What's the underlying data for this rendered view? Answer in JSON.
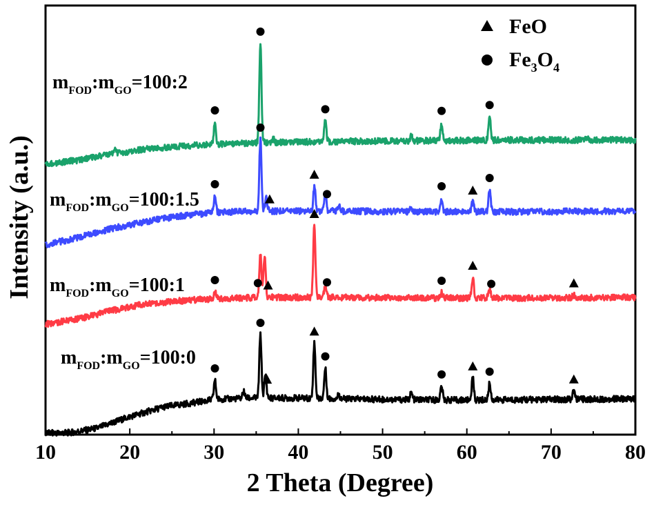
{
  "chart_data": {
    "type": "line",
    "xlabel": "2 Theta (Degree)",
    "ylabel": "Intensity (a.u.)",
    "xlim": [
      10,
      80
    ],
    "xticks": [
      "10",
      "20",
      "30",
      "40",
      "50",
      "60",
      "70",
      "80"
    ],
    "yticks": [],
    "grid": false,
    "legend_position": "top-right",
    "legend": [
      {
        "marker": "triangle",
        "label_main": "FeO",
        "label_sub1": "",
        "label_mid": "",
        "label_sub2": ""
      },
      {
        "marker": "circle",
        "label_main": "Fe",
        "label_sub1": "3",
        "label_mid": "O",
        "label_sub2": "4"
      }
    ],
    "series": [
      {
        "label_m1": "m",
        "label_s1": "FOD",
        "label_m2": ":m",
        "label_s2": "GO",
        "label_ratio": "=100:0",
        "color": "#000000",
        "baseline": [
          [
            10,
            0.0
          ],
          [
            13,
            0.05
          ],
          [
            16,
            0.35
          ],
          [
            20,
            1.2
          ],
          [
            24,
            1.9
          ],
          [
            28,
            2.25
          ],
          [
            30,
            2.45
          ],
          [
            34,
            2.55
          ],
          [
            40,
            2.55
          ],
          [
            50,
            2.45
          ],
          [
            60,
            2.4
          ],
          [
            70,
            2.45
          ],
          [
            80,
            2.5
          ]
        ],
        "peaks": [
          [
            30.1,
            1.4
          ],
          [
            33.5,
            0.5
          ],
          [
            35.5,
            4.6
          ],
          [
            36.1,
            1.7
          ],
          [
            41.9,
            4.0
          ],
          [
            43.2,
            2.2
          ],
          [
            44.8,
            0.3
          ],
          [
            53.4,
            0.5
          ],
          [
            57.0,
            1.0
          ],
          [
            60.7,
            1.6
          ],
          [
            62.7,
            1.2
          ],
          [
            72.7,
            0.6
          ]
        ],
        "markers": [
          {
            "shape": "circle",
            "x": 30.1
          },
          {
            "shape": "circle",
            "x": 35.5
          },
          {
            "shape": "triangle",
            "x": 36.3
          },
          {
            "shape": "triangle",
            "x": 41.9
          },
          {
            "shape": "circle",
            "x": 43.2
          },
          {
            "shape": "circle",
            "x": 57.0
          },
          {
            "shape": "triangle",
            "x": 60.7
          },
          {
            "shape": "circle",
            "x": 62.7
          },
          {
            "shape": "triangle",
            "x": 72.7
          }
        ]
      },
      {
        "label_m1": "m",
        "label_s1": "FOD",
        "label_m2": ":m",
        "label_s2": "GO",
        "label_ratio": "=100:1",
        "color": "#ff3b45",
        "baseline": [
          [
            10,
            0.0
          ],
          [
            14,
            0.4
          ],
          [
            18,
            1.0
          ],
          [
            22,
            1.5
          ],
          [
            26,
            1.7
          ],
          [
            30,
            1.85
          ],
          [
            36,
            1.95
          ],
          [
            45,
            1.95
          ],
          [
            55,
            1.9
          ],
          [
            65,
            1.9
          ],
          [
            80,
            1.95
          ]
        ],
        "peaks": [
          [
            30.1,
            0.5
          ],
          [
            35.5,
            3.1
          ],
          [
            36.0,
            3.1
          ],
          [
            41.9,
            5.2
          ],
          [
            43.2,
            0.8
          ],
          [
            57.0,
            0.4
          ],
          [
            60.7,
            1.5
          ],
          [
            62.7,
            0.6
          ],
          [
            72.7,
            0.2
          ]
        ],
        "markers": [
          {
            "shape": "circle",
            "x": 30.1
          },
          {
            "shape": "circle",
            "x": 35.2
          },
          {
            "shape": "triangle",
            "x": 36.4
          },
          {
            "shape": "triangle",
            "x": 41.9
          },
          {
            "shape": "circle",
            "x": 43.4
          },
          {
            "shape": "circle",
            "x": 57.0
          },
          {
            "shape": "triangle",
            "x": 60.7
          },
          {
            "shape": "circle",
            "x": 62.9
          },
          {
            "shape": "triangle",
            "x": 72.7
          }
        ]
      },
      {
        "label_m1": "m",
        "label_s1": "FOD",
        "label_m2": ":m",
        "label_s2": "GO",
        "label_ratio": "=100:1.5",
        "color": "#3d4bff",
        "baseline": [
          [
            10,
            0.0
          ],
          [
            14,
            0.55
          ],
          [
            18,
            1.2
          ],
          [
            22,
            1.7
          ],
          [
            26,
            2.1
          ],
          [
            30,
            2.35
          ],
          [
            35,
            2.45
          ],
          [
            45,
            2.45
          ],
          [
            55,
            2.4
          ],
          [
            65,
            2.4
          ],
          [
            80,
            2.45
          ]
        ],
        "peaks": [
          [
            30.1,
            1.2
          ],
          [
            35.5,
            5.2
          ],
          [
            36.2,
            1.1
          ],
          [
            41.9,
            1.8
          ],
          [
            43.2,
            1.3
          ],
          [
            44.8,
            0.4
          ],
          [
            53.4,
            0.3
          ],
          [
            57.0,
            1.0
          ],
          [
            60.7,
            0.7
          ],
          [
            62.7,
            1.6
          ]
        ],
        "markers": [
          {
            "shape": "circle",
            "x": 30.1
          },
          {
            "shape": "circle",
            "x": 35.5
          },
          {
            "shape": "triangle",
            "x": 36.6
          },
          {
            "shape": "triangle",
            "x": 41.9
          },
          {
            "shape": "circle",
            "x": 43.4
          },
          {
            "shape": "circle",
            "x": 57.0
          },
          {
            "shape": "triangle",
            "x": 60.7
          },
          {
            "shape": "circle",
            "x": 62.7
          }
        ]
      },
      {
        "label_m1": "m",
        "label_s1": "FOD",
        "label_m2": ":m",
        "label_s2": "GO",
        "label_ratio": "=100:2",
        "color": "#1aa26b",
        "baseline": [
          [
            10,
            0.0
          ],
          [
            14,
            0.3
          ],
          [
            18,
            0.75
          ],
          [
            22,
            1.1
          ],
          [
            26,
            1.3
          ],
          [
            30,
            1.45
          ],
          [
            35,
            1.55
          ],
          [
            45,
            1.65
          ],
          [
            55,
            1.7
          ],
          [
            65,
            1.75
          ],
          [
            80,
            1.75
          ]
        ],
        "peaks": [
          [
            18.3,
            0.3
          ],
          [
            30.1,
            1.6
          ],
          [
            35.5,
            7.2
          ],
          [
            37.0,
            0.3
          ],
          [
            43.2,
            1.5
          ],
          [
            53.4,
            0.4
          ],
          [
            57.0,
            1.3
          ],
          [
            62.7,
            1.7
          ],
          [
            74.3,
            0.2
          ]
        ],
        "markers": [
          {
            "shape": "circle",
            "x": 30.1
          },
          {
            "shape": "circle",
            "x": 35.5
          },
          {
            "shape": "circle",
            "x": 43.2
          },
          {
            "shape": "circle",
            "x": 57.0
          },
          {
            "shape": "circle",
            "x": 62.7
          }
        ]
      }
    ]
  }
}
